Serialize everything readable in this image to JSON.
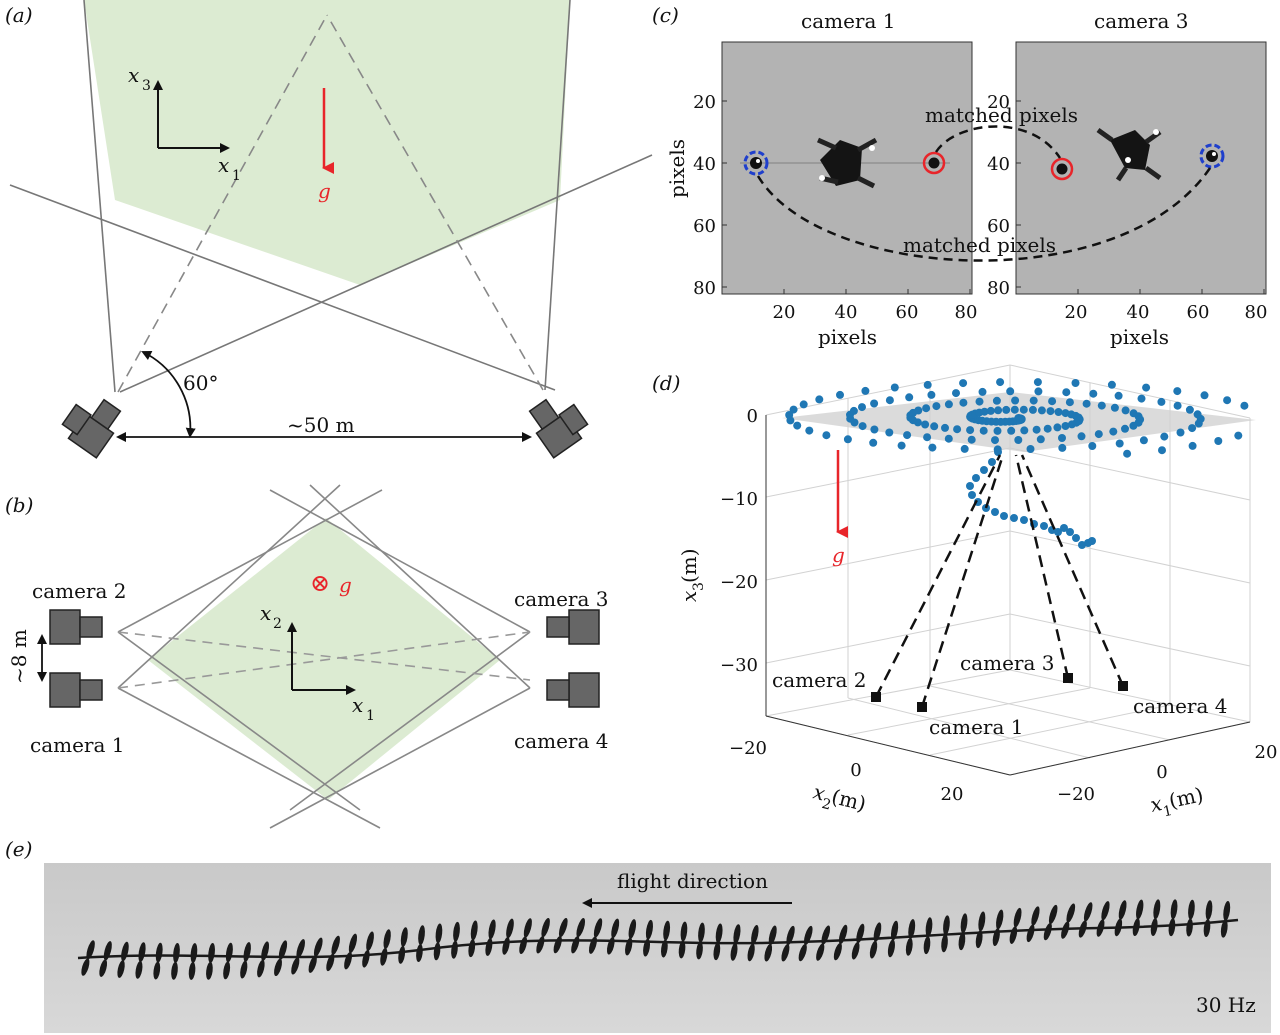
{
  "panels": {
    "a": {
      "label": "(a)",
      "axis_x": "x",
      "axis_x_sub": "1",
      "axis_y": "x",
      "axis_y_sub": "3",
      "gravity": "g",
      "angle": "60°",
      "distance": "~50 m"
    },
    "b": {
      "label": "(b)",
      "cameras": [
        "camera 2",
        "camera 3",
        "camera 1",
        "camera 4"
      ],
      "spacing": "~8 m",
      "gravity_symbol": "⊗",
      "gravity": "g",
      "axis_x": "x",
      "axis_x_sub": "1",
      "axis_y": "x",
      "axis_y_sub": "2"
    },
    "c": {
      "label": "(c)",
      "left_title": "camera 1",
      "right_title": "camera 3",
      "ylabel": "pixels",
      "xlabel": "pixels",
      "yticks": [
        "20",
        "40",
        "60",
        "80"
      ],
      "xticks": [
        "20",
        "40",
        "60",
        "80"
      ],
      "annotation_top": "matched pixels",
      "annotation_bottom": "matched pixels"
    },
    "d": {
      "label": "(d)",
      "zticks": [
        "0",
        "−10",
        "−20",
        "−30"
      ],
      "zlabel": "x",
      "zlabel_sub": "3",
      "zunit": " (m)",
      "x2ticks": [
        "−20",
        "0",
        "20"
      ],
      "x2label": "x",
      "x2label_sub": "2",
      "x2unit": " (m)",
      "x1ticks": [
        "−20",
        "0",
        "20"
      ],
      "x1label": "x",
      "x1label_sub": "1",
      "x1unit": " (m)",
      "gravity": "g",
      "cameras": [
        "camera 2",
        "camera 1",
        "camera 3",
        "camera 4"
      ]
    },
    "e": {
      "label": "(e)",
      "direction": "flight direction",
      "rate": "30 Hz"
    }
  },
  "colors": {
    "green_fill": "#dcebd2",
    "gravity_red": "#e8252a",
    "point_blue": "#1f77b4",
    "camera_gray": "#666666"
  }
}
